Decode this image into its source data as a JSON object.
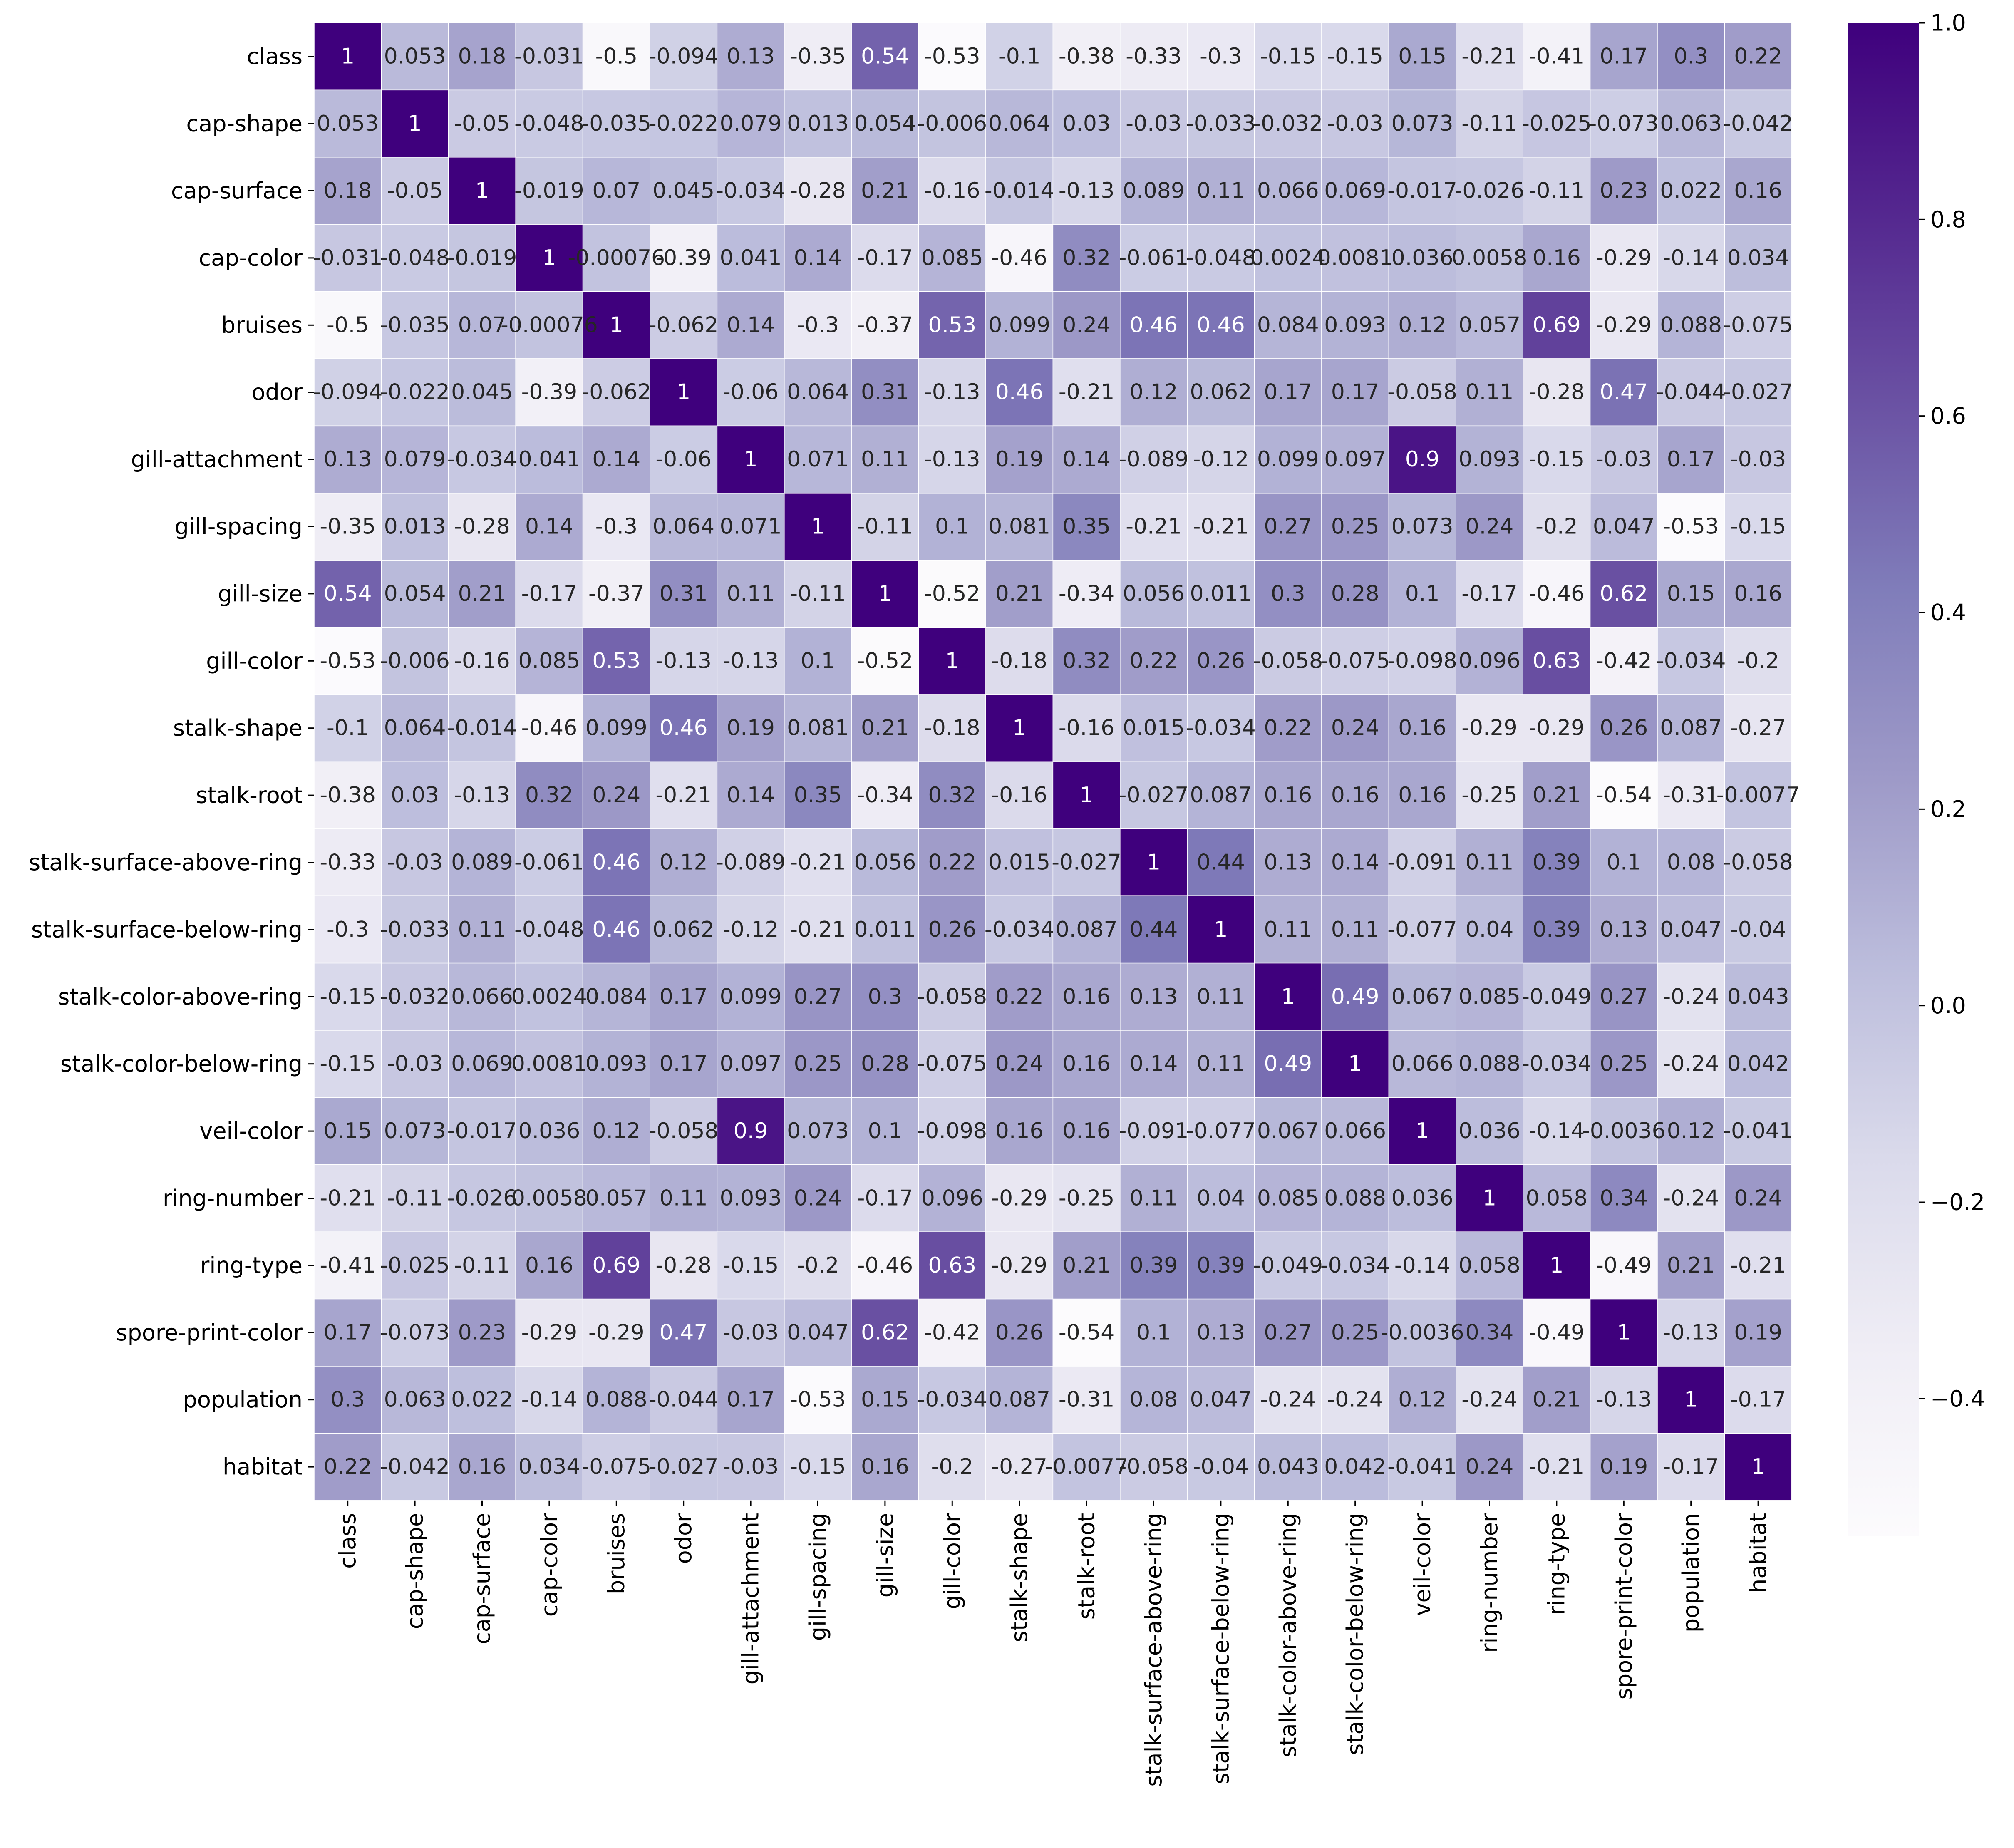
{
  "chart_data": {
    "type": "heatmap",
    "labels": [
      "class",
      "cap-shape",
      "cap-surface",
      "cap-color",
      "bruises",
      "odor",
      "gill-attachment",
      "gill-spacing",
      "gill-size",
      "gill-color",
      "stalk-shape",
      "stalk-root",
      "stalk-surface-above-ring",
      "stalk-surface-below-ring",
      "stalk-color-above-ring",
      "stalk-color-below-ring",
      "veil-color",
      "ring-number",
      "ring-type",
      "spore-print-color",
      "population",
      "habitat"
    ],
    "values": [
      [
        1,
        0.053,
        0.18,
        -0.031,
        -0.5,
        -0.094,
        0.13,
        -0.35,
        0.54,
        -0.53,
        -0.1,
        -0.38,
        -0.33,
        -0.3,
        -0.15,
        -0.15,
        0.15,
        -0.21,
        -0.41,
        0.17,
        0.3,
        0.22
      ],
      [
        0.053,
        1,
        -0.05,
        -0.048,
        -0.035,
        -0.022,
        0.079,
        0.013,
        0.054,
        -0.006,
        0.064,
        0.03,
        -0.03,
        -0.033,
        -0.032,
        -0.03,
        0.073,
        -0.11,
        -0.025,
        -0.073,
        0.063,
        -0.042
      ],
      [
        0.18,
        -0.05,
        1,
        -0.019,
        0.07,
        0.045,
        -0.034,
        -0.28,
        0.21,
        -0.16,
        -0.014,
        -0.13,
        0.089,
        0.11,
        0.066,
        0.069,
        -0.017,
        -0.026,
        -0.11,
        0.23,
        0.022,
        0.16
      ],
      [
        -0.031,
        -0.048,
        -0.019,
        1,
        -0.00076,
        -0.39,
        0.041,
        0.14,
        -0.17,
        0.085,
        -0.46,
        0.32,
        -0.061,
        -0.048,
        0.0024,
        0.0081,
        0.036,
        0.0058,
        0.16,
        -0.29,
        -0.14,
        0.034
      ],
      [
        -0.5,
        -0.035,
        0.07,
        -0.00076,
        1,
        -0.062,
        0.14,
        -0.3,
        -0.37,
        0.53,
        0.099,
        0.24,
        0.46,
        0.46,
        0.084,
        0.093,
        0.12,
        0.057,
        0.69,
        -0.29,
        0.088,
        -0.075
      ],
      [
        -0.094,
        -0.022,
        0.045,
        -0.39,
        -0.062,
        1,
        -0.06,
        0.064,
        0.31,
        -0.13,
        0.46,
        -0.21,
        0.12,
        0.062,
        0.17,
        0.17,
        -0.058,
        0.11,
        -0.28,
        0.47,
        -0.044,
        -0.027
      ],
      [
        0.13,
        0.079,
        -0.034,
        0.041,
        0.14,
        -0.06,
        1,
        0.071,
        0.11,
        -0.13,
        0.19,
        0.14,
        -0.089,
        -0.12,
        0.099,
        0.097,
        0.9,
        0.093,
        -0.15,
        -0.03,
        0.17,
        -0.03
      ],
      [
        -0.35,
        0.013,
        -0.28,
        0.14,
        -0.3,
        0.064,
        0.071,
        1,
        -0.11,
        0.1,
        0.081,
        0.35,
        -0.21,
        -0.21,
        0.27,
        0.25,
        0.073,
        0.24,
        -0.2,
        0.047,
        -0.53,
        -0.15
      ],
      [
        0.54,
        0.054,
        0.21,
        -0.17,
        -0.37,
        0.31,
        0.11,
        -0.11,
        1,
        -0.52,
        0.21,
        -0.34,
        0.056,
        0.011,
        0.3,
        0.28,
        0.1,
        -0.17,
        -0.46,
        0.62,
        0.15,
        0.16
      ],
      [
        -0.53,
        -0.006,
        -0.16,
        0.085,
        0.53,
        -0.13,
        -0.13,
        0.1,
        -0.52,
        1,
        -0.18,
        0.32,
        0.22,
        0.26,
        -0.058,
        -0.075,
        -0.098,
        0.096,
        0.63,
        -0.42,
        -0.034,
        -0.2
      ],
      [
        -0.1,
        0.064,
        -0.014,
        -0.46,
        0.099,
        0.46,
        0.19,
        0.081,
        0.21,
        -0.18,
        1,
        -0.16,
        0.015,
        -0.034,
        0.22,
        0.24,
        0.16,
        -0.29,
        -0.29,
        0.26,
        0.087,
        -0.27
      ],
      [
        -0.38,
        0.03,
        -0.13,
        0.32,
        0.24,
        -0.21,
        0.14,
        0.35,
        -0.34,
        0.32,
        -0.16,
        1,
        -0.027,
        0.087,
        0.16,
        0.16,
        0.16,
        -0.25,
        0.21,
        -0.54,
        -0.31,
        -0.0077
      ],
      [
        -0.33,
        -0.03,
        0.089,
        -0.061,
        0.46,
        0.12,
        -0.089,
        -0.21,
        0.056,
        0.22,
        0.015,
        -0.027,
        1,
        0.44,
        0.13,
        0.14,
        -0.091,
        0.11,
        0.39,
        0.1,
        0.08,
        -0.058
      ],
      [
        -0.3,
        -0.033,
        0.11,
        -0.048,
        0.46,
        0.062,
        -0.12,
        -0.21,
        0.011,
        0.26,
        -0.034,
        0.087,
        0.44,
        1,
        0.11,
        0.11,
        -0.077,
        0.04,
        0.39,
        0.13,
        0.047,
        -0.04
      ],
      [
        -0.15,
        -0.032,
        0.066,
        0.0024,
        0.084,
        0.17,
        0.099,
        0.27,
        0.3,
        -0.058,
        0.22,
        0.16,
        0.13,
        0.11,
        1,
        0.49,
        0.067,
        0.085,
        -0.049,
        0.27,
        -0.24,
        0.043
      ],
      [
        -0.15,
        -0.03,
        0.069,
        0.0081,
        0.093,
        0.17,
        0.097,
        0.25,
        0.28,
        -0.075,
        0.24,
        0.16,
        0.14,
        0.11,
        0.49,
        1,
        0.066,
        0.088,
        -0.034,
        0.25,
        -0.24,
        0.042
      ],
      [
        0.15,
        0.073,
        -0.017,
        0.036,
        0.12,
        -0.058,
        0.9,
        0.073,
        0.1,
        -0.098,
        0.16,
        0.16,
        -0.091,
        -0.077,
        0.067,
        0.066,
        1,
        0.036,
        -0.14,
        -0.0036,
        0.12,
        -0.041
      ],
      [
        -0.21,
        -0.11,
        -0.026,
        0.0058,
        0.057,
        0.11,
        0.093,
        0.24,
        -0.17,
        0.096,
        -0.29,
        -0.25,
        0.11,
        0.04,
        0.085,
        0.088,
        0.036,
        1,
        0.058,
        0.34,
        -0.24,
        0.24
      ],
      [
        -0.41,
        -0.025,
        -0.11,
        0.16,
        0.69,
        -0.28,
        -0.15,
        -0.2,
        -0.46,
        0.63,
        -0.29,
        0.21,
        0.39,
        0.39,
        -0.049,
        -0.034,
        -0.14,
        0.058,
        1,
        -0.49,
        0.21,
        -0.21
      ],
      [
        0.17,
        -0.073,
        0.23,
        -0.29,
        -0.29,
        0.47,
        -0.03,
        0.047,
        0.62,
        -0.42,
        0.26,
        -0.54,
        0.1,
        0.13,
        0.27,
        0.25,
        -0.0036,
        0.34,
        -0.49,
        1,
        -0.13,
        0.19
      ],
      [
        0.3,
        0.063,
        0.022,
        -0.14,
        0.088,
        -0.044,
        0.17,
        -0.53,
        0.15,
        -0.034,
        0.087,
        -0.31,
        0.08,
        0.047,
        -0.24,
        -0.24,
        0.12,
        -0.24,
        0.21,
        -0.13,
        1,
        -0.17
      ],
      [
        0.22,
        -0.042,
        0.16,
        0.034,
        -0.075,
        -0.027,
        -0.03,
        -0.15,
        0.16,
        -0.2,
        -0.27,
        -0.0077,
        -0.058,
        -0.04,
        0.043,
        0.042,
        -0.041,
        0.24,
        -0.21,
        0.19,
        -0.17,
        1
      ]
    ],
    "vmin": -0.54,
    "vmax": 1.0,
    "colorbar_ticks": [
      1.0,
      0.8,
      0.6,
      0.4,
      0.2,
      0.0,
      -0.2,
      -0.4
    ],
    "colorbar_tick_labels": [
      "1.0",
      "0.8",
      "0.6",
      "0.4",
      "0.2",
      "0.0",
      "−0.2",
      "−0.4"
    ],
    "colormap": [
      "#fcfbfd",
      "#efedf5",
      "#dadaeb",
      "#bcbddc",
      "#9e9ac8",
      "#807dba",
      "#6a51a3",
      "#54278f",
      "#3f007d"
    ],
    "annotations": true,
    "annotation_dark_text": "#262626",
    "annotation_light_text": "#ffffff",
    "grid_line_color": "#ffffff"
  }
}
